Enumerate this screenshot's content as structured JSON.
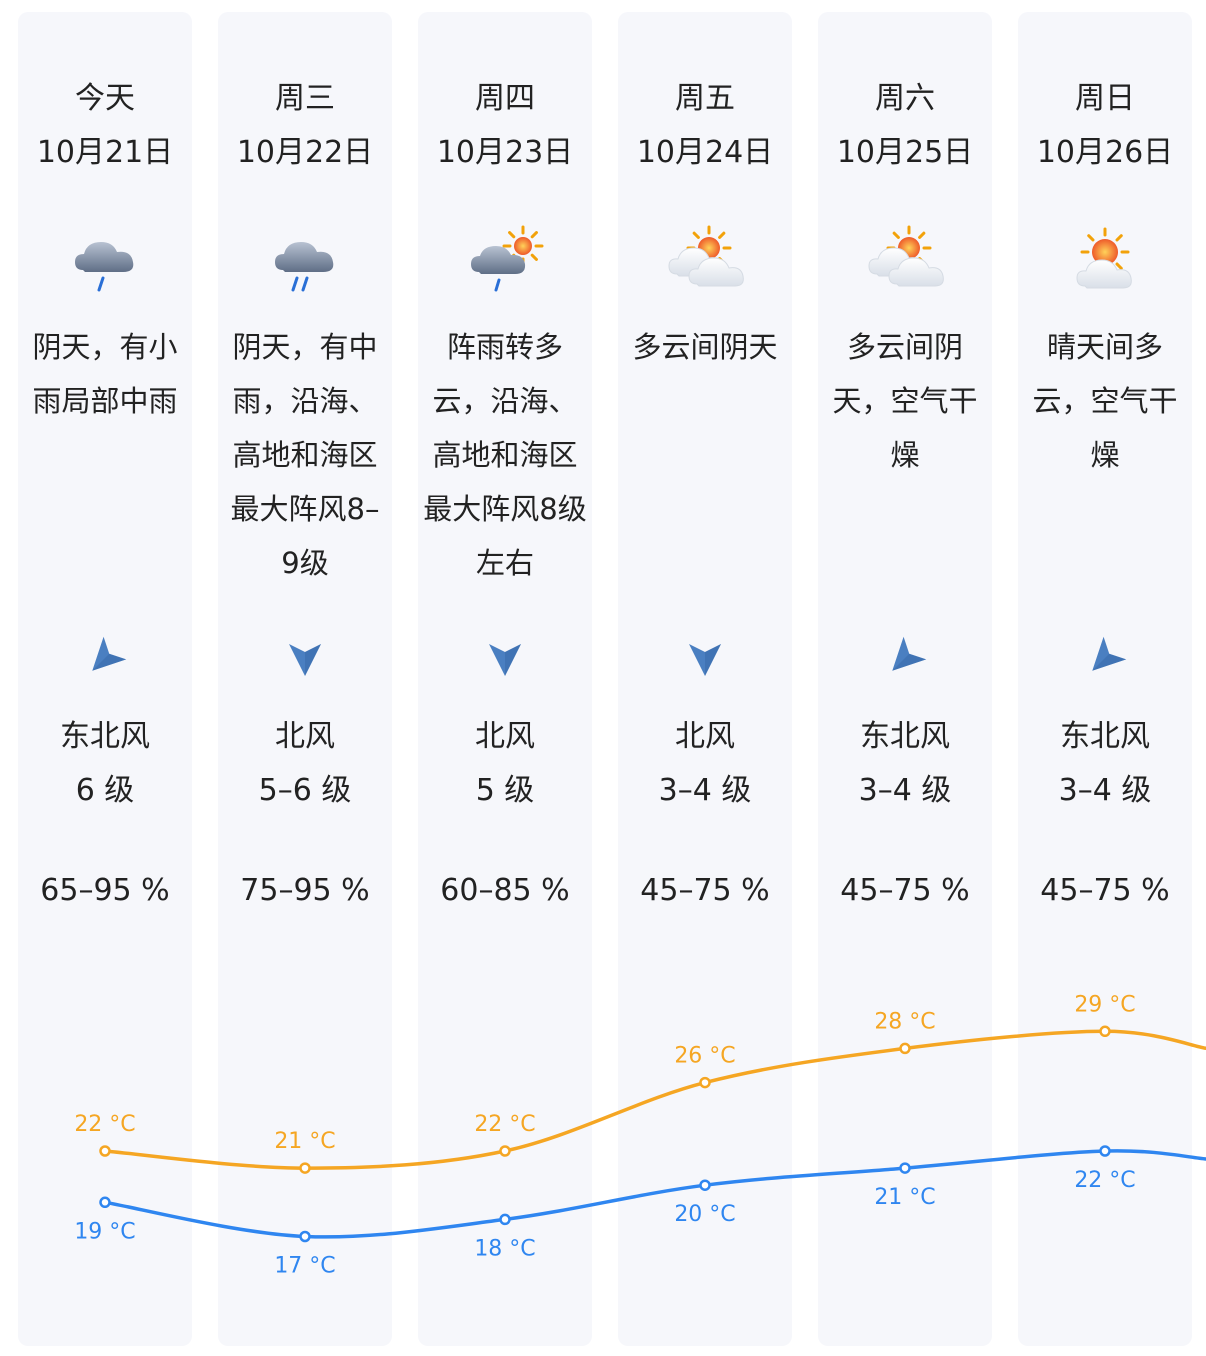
{
  "colors": {
    "high": "#f5a623",
    "low": "#2f86f0",
    "arrow": "#4a7fc1",
    "panel": "#f6f7fb"
  },
  "days": [
    {
      "day": "今天",
      "date": "10月21日",
      "icon": "cloud-light-rain-icon",
      "desc": "阴天，有小雨局部中雨",
      "wind_direction": "东北风",
      "wind_level": "6 级",
      "wind_arrow": "northeast-wind-arrow-icon",
      "humidity": "65–95 %",
      "high": "22 °C",
      "low": "19 °C"
    },
    {
      "day": "周三",
      "date": "10月22日",
      "icon": "cloud-moderate-rain-icon",
      "desc": "阴天，有中雨，沿海、高地和海区最大阵风8–9级",
      "wind_direction": "北风",
      "wind_level": "5–6 级",
      "wind_arrow": "north-wind-arrow-icon",
      "humidity": "75–95 %",
      "high": "21 °C",
      "low": "17 °C"
    },
    {
      "day": "周四",
      "date": "10月23日",
      "icon": "shower-to-cloudy-icon",
      "desc": "阵雨转多云，沿海、高地和海区最大阵风8级左右",
      "wind_direction": "北风",
      "wind_level": "5 级",
      "wind_arrow": "north-wind-arrow-icon",
      "humidity": "60–85 %",
      "high": "22 °C",
      "low": "18 °C"
    },
    {
      "day": "周五",
      "date": "10月24日",
      "icon": "partly-cloudy-icon",
      "desc": "多云间阴天",
      "wind_direction": "北风",
      "wind_level": "3–4 级",
      "wind_arrow": "north-wind-arrow-icon",
      "humidity": "45–75 %",
      "high": "26 °C",
      "low": "20 °C"
    },
    {
      "day": "周六",
      "date": "10月25日",
      "icon": "partly-cloudy-icon",
      "desc": "多云间阴天，空气干燥",
      "wind_direction": "东北风",
      "wind_level": "3–4 级",
      "wind_arrow": "northeast-wind-arrow-icon",
      "humidity": "45–75 %",
      "high": "28 °C",
      "low": "21 °C"
    },
    {
      "day": "周日",
      "date": "10月26日",
      "icon": "sunny-intervals-icon",
      "desc": "晴天间多云，空气干燥",
      "wind_direction": "东北风",
      "wind_level": "3–4 级",
      "wind_arrow": "northeast-wind-arrow-icon",
      "humidity": "45–75 %",
      "high": "29 °C",
      "low": "22 °C"
    }
  ],
  "chart_data": {
    "type": "line",
    "categories": [
      "10月21日",
      "10月22日",
      "10月23日",
      "10月24日",
      "10月25日",
      "10月26日"
    ],
    "unit": "°C",
    "series": [
      {
        "values": [
          22,
          21,
          22,
          26,
          28,
          29
        ]
      },
      {
        "values": [
          19,
          17,
          18,
          20,
          21,
          22
        ]
      }
    ]
  }
}
